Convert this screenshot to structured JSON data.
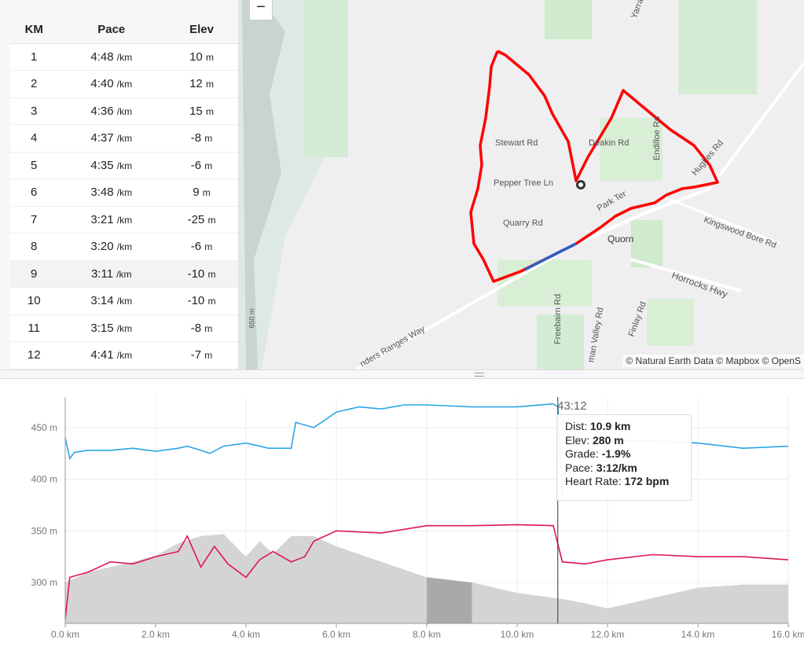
{
  "splits": {
    "headers": [
      "KM",
      "Pace",
      "Elev"
    ],
    "pace_unit": "/km",
    "elev_unit": "m",
    "rows": [
      [
        "1",
        "4:48",
        "10"
      ],
      [
        "2",
        "4:40",
        "12"
      ],
      [
        "3",
        "4:36",
        "15"
      ],
      [
        "4",
        "4:37",
        "-8"
      ],
      [
        "5",
        "4:35",
        "-6"
      ],
      [
        "6",
        "3:48",
        "9"
      ],
      [
        "7",
        "3:21",
        "-25"
      ],
      [
        "8",
        "3:20",
        "-6"
      ],
      [
        "9",
        "3:11",
        "-10"
      ],
      [
        "10",
        "3:14",
        "-10"
      ],
      [
        "11",
        "3:15",
        "-8"
      ],
      [
        "12",
        "4:41",
        "-7"
      ]
    ]
  },
  "map": {
    "zoom_out": "−",
    "labels": [
      "Stewart Rd",
      "Deakin Rd",
      "Endilloe Rd",
      "Hughes Rd",
      "Pepper Tree Ln",
      "Park Ter",
      "Quarry Rd",
      "Kingswood Bore Rd",
      "Quorn",
      "Horrocks Hwy",
      "Freebairn Rd",
      "Finlay Rd",
      "man Valley Rd",
      "nders Ranges Way",
      "Yarra",
      "650 m"
    ],
    "attribution": "© Natural Earth Data © Mapbox © OpenS",
    "route_color": "#ff0000",
    "highlight_color": "#2f5fc4"
  },
  "tooltip": {
    "time": "43:12",
    "rows": [
      {
        "k": "Dist: ",
        "v": "10.9 km"
      },
      {
        "k": "Elev: ",
        "v": "280 m"
      },
      {
        "k": "Grade: ",
        "v": "-1.9%"
      },
      {
        "k": "Pace: ",
        "v": "3:12/km"
      },
      {
        "k": "Heart Rate: ",
        "v": "172 bpm"
      }
    ]
  },
  "chart_data": {
    "type": "line",
    "xlabel": "",
    "ylabel": "",
    "xlim": [
      0,
      16
    ],
    "ylim": [
      260,
      480
    ],
    "xticks": [
      "0.0 km",
      "2.0 km",
      "4.0 km",
      "6.0 km",
      "8.0 km",
      "10.0 km",
      "12.0 km",
      "14.0 km",
      "16.0 km"
    ],
    "yticks": [
      "450 m",
      "400 m",
      "350 m",
      "300 m"
    ],
    "ytick_values": [
      450,
      400,
      350,
      300
    ],
    "cursor_km": 10.9,
    "highlight_km": [
      8.0,
      9.0
    ],
    "series": [
      {
        "name": "Elevation",
        "color": "#d4d4d4",
        "type": "area",
        "x": [
          0,
          0.5,
          1,
          1.5,
          2,
          2.5,
          3,
          3.5,
          4,
          4.3,
          4.6,
          5,
          5.5,
          6,
          7,
          8,
          9,
          10,
          11,
          11.5,
          12,
          13,
          14,
          15,
          16
        ],
        "y": [
          300,
          310,
          315,
          320,
          326,
          338,
          345,
          347,
          325,
          340,
          328,
          345,
          345,
          335,
          320,
          305,
          300,
          290,
          284,
          280,
          275,
          285,
          295,
          298,
          298
        ]
      },
      {
        "name": "Pace",
        "color": "#2ba6e5",
        "x": [
          0,
          0.1,
          0.2,
          0.5,
          1,
          1.5,
          2,
          2.5,
          2.7,
          3,
          3.2,
          3.5,
          4,
          4.5,
          5,
          5.1,
          5.5,
          6,
          6.5,
          7,
          7.5,
          8,
          9,
          10,
          10.8,
          10.9,
          11,
          11.1,
          11.3,
          12,
          13,
          14,
          15,
          16
        ],
        "y": [
          440,
          420,
          426,
          428,
          428,
          430,
          427,
          430,
          432,
          428,
          425,
          432,
          435,
          430,
          430,
          455,
          450,
          465,
          470,
          468,
          472,
          472,
          470,
          470,
          473,
          470,
          385,
          420,
          440,
          438,
          437,
          435,
          430,
          432
        ]
      },
      {
        "name": "Heart Rate",
        "color": "#e0174e",
        "x": [
          0,
          0.1,
          0.5,
          1,
          1.5,
          2,
          2.5,
          2.7,
          3,
          3.3,
          3.6,
          4,
          4.3,
          4.6,
          5,
          5.3,
          5.5,
          6,
          7,
          8,
          9,
          10,
          10.8,
          11,
          11.5,
          12,
          13,
          14,
          15,
          16
        ],
        "y": [
          265,
          305,
          310,
          320,
          318,
          325,
          330,
          345,
          315,
          335,
          318,
          305,
          322,
          330,
          320,
          325,
          340,
          350,
          348,
          355,
          355,
          356,
          355,
          320,
          318,
          322,
          327,
          325,
          325,
          322
        ]
      }
    ]
  }
}
